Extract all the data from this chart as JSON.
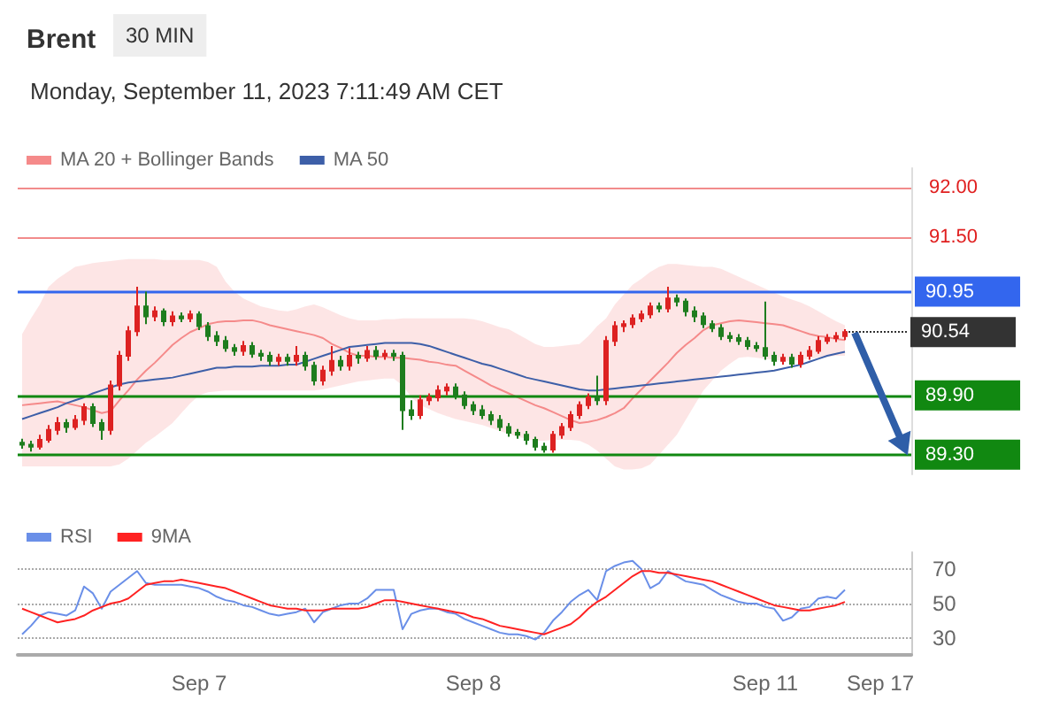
{
  "chart_data": [
    {
      "type": "candlestick",
      "title": "Brent",
      "subtitle": "Monday, September 11, 2023 7:11:49 AM CET",
      "annotations": [
        "30 MIN"
      ],
      "categories": [
        null,
        null,
        null,
        null,
        null,
        null,
        null,
        null,
        null,
        null,
        null,
        null,
        null,
        null,
        null,
        null,
        null,
        null,
        null,
        null,
        null,
        null,
        null,
        null,
        null,
        null,
        null,
        null,
        null,
        null,
        null,
        null,
        null,
        null,
        null,
        null,
        null,
        null,
        null,
        null,
        null,
        null,
        null,
        null,
        null,
        null,
        null,
        null,
        null,
        null,
        null,
        null,
        null,
        null,
        null,
        null,
        null,
        null,
        null,
        null,
        null,
        null,
        null,
        null,
        null,
        null,
        null,
        null,
        null,
        null,
        null,
        null,
        null,
        null,
        null,
        null,
        null,
        null,
        null,
        null,
        null,
        null,
        null,
        null,
        null,
        null,
        null,
        null,
        null,
        null,
        null,
        null,
        null,
        null,
        null,
        null,
        null,
        null,
        null,
        null,
        null
      ],
      "colors": [
        "#1e7d1e",
        "#1e7d1e",
        "#dd2222",
        "#dd2222",
        "#dd2222",
        "#1e7d1e",
        "#dd2222",
        "#dd2222",
        "#1e7d1e",
        "#1e7d1e",
        "#dd2222",
        "#dd2222",
        "#dd2222",
        "#dd2222",
        "#1e7d1e",
        "#dd2222",
        "#1e7d1e",
        "#dd2222",
        "#1e7d1e",
        "#dd2222",
        "#1e7d1e",
        "#1e7d1e",
        "#1e7d1e",
        "#1e7d1e",
        "#1e7d1e",
        "#dd2222",
        "#1e7d1e",
        "#1e7d1e",
        "#1e7d1e",
        "#dd2222",
        "#1e7d1e",
        "#dd2222",
        "#1e7d1e",
        "#1e7d1e",
        "#dd2222",
        "#dd2222",
        "#1e7d1e",
        "#dd2222",
        "#1e7d1e",
        "#dd2222",
        "#1e7d1e",
        "#dd2222",
        "#1e7d1e",
        "#1e7d1e",
        "#1e7d1e",
        "#dd2222",
        "#dd2222",
        "#dd2222",
        "#dd2222",
        "#1e7d1e",
        "#1e7d1e",
        "#1e7d1e",
        "#1e7d1e",
        "#1e7d1e",
        "#1e7d1e",
        "#1e7d1e",
        "#1e7d1e",
        "#1e7d1e",
        "#1e7d1e",
        "#1e7d1e",
        "#dd2222",
        "#dd2222",
        "#dd2222",
        "#dd2222",
        "#dd2222",
        "#1e7d1e",
        "#dd2222",
        "#dd2222",
        "#dd2222",
        "#dd2222",
        "#dd2222",
        "#dd2222",
        "#1e7d1e",
        "#dd2222",
        "#1e7d1e",
        "#1e7d1e",
        "#1e7d1e",
        "#1e7d1e",
        "#1e7d1e",
        "#1e7d1e",
        "#1e7d1e",
        "#1e7d1e",
        "#1e7d1e",
        "#1e7d1e",
        "#1e7d1e",
        "#1e7d1e",
        "#dd2222",
        "#1e7d1e",
        "#dd2222",
        "#dd2222",
        "#dd2222",
        "#dd2222",
        "#dd2222",
        "#dd2222",
        null,
        null,
        null,
        null,
        null,
        null,
        null
      ],
      "ohlc": [
        [
          89.42,
          89.46,
          89.36,
          89.4
        ],
        [
          89.4,
          89.44,
          89.33,
          89.38
        ],
        [
          89.38,
          89.5,
          89.35,
          89.45
        ],
        [
          89.45,
          89.6,
          89.42,
          89.55
        ],
        [
          89.55,
          89.68,
          89.5,
          89.62
        ],
        [
          89.62,
          89.66,
          89.52,
          89.58
        ],
        [
          89.58,
          89.7,
          89.55,
          89.65
        ],
        [
          89.65,
          89.82,
          89.6,
          89.78
        ],
        [
          89.78,
          89.82,
          89.58,
          89.62
        ],
        [
          89.62,
          89.66,
          89.45,
          89.55
        ],
        [
          89.55,
          90.05,
          89.5,
          90.0
        ],
        [
          90.0,
          90.35,
          89.95,
          90.3
        ],
        [
          90.3,
          90.6,
          90.25,
          90.55
        ],
        [
          90.55,
          91.0,
          90.5,
          90.8
        ],
        [
          90.8,
          90.95,
          90.62,
          90.7
        ],
        [
          90.7,
          90.8,
          90.65,
          90.75
        ],
        [
          90.75,
          90.78,
          90.6,
          90.65
        ],
        [
          90.65,
          90.75,
          90.6,
          90.7
        ],
        [
          90.7,
          90.74,
          90.64,
          90.68
        ],
        [
          90.68,
          90.76,
          90.64,
          90.72
        ],
        [
          90.72,
          90.75,
          90.56,
          90.6
        ],
        [
          90.6,
          90.64,
          90.45,
          90.5
        ],
        [
          90.5,
          90.55,
          90.4,
          90.45
        ],
        [
          90.45,
          90.5,
          90.34,
          90.38
        ],
        [
          90.38,
          90.42,
          90.3,
          90.35
        ],
        [
          90.35,
          90.45,
          90.3,
          90.4
        ],
        [
          90.4,
          90.44,
          90.28,
          90.32
        ],
        [
          90.32,
          90.36,
          90.25,
          90.3
        ],
        [
          90.3,
          90.34,
          90.2,
          90.25
        ],
        [
          90.25,
          90.32,
          90.2,
          90.28
        ],
        [
          90.28,
          90.32,
          90.2,
          90.25
        ],
        [
          90.25,
          90.4,
          90.2,
          90.3
        ],
        [
          90.3,
          90.34,
          90.15,
          90.2
        ],
        [
          90.2,
          90.24,
          90.0,
          90.05
        ],
        [
          90.05,
          90.2,
          90.0,
          90.15
        ],
        [
          90.15,
          90.4,
          90.1,
          90.25
        ],
        [
          90.25,
          90.3,
          90.15,
          90.2
        ],
        [
          90.2,
          90.38,
          90.15,
          90.3
        ],
        [
          90.3,
          90.34,
          90.22,
          90.28
        ],
        [
          90.28,
          90.4,
          90.24,
          90.35
        ],
        [
          90.35,
          90.4,
          90.26,
          90.3
        ],
        [
          90.3,
          90.36,
          90.26,
          90.32
        ],
        [
          90.32,
          90.36,
          90.25,
          90.3
        ],
        [
          90.3,
          90.34,
          89.55,
          89.75
        ],
        [
          89.75,
          89.85,
          89.65,
          89.7
        ],
        [
          89.7,
          89.9,
          89.66,
          89.85
        ],
        [
          89.85,
          89.92,
          89.8,
          89.88
        ],
        [
          89.88,
          90.0,
          89.84,
          89.95
        ],
        [
          89.95,
          90.02,
          89.9,
          89.98
        ],
        [
          89.98,
          90.02,
          89.86,
          89.9
        ],
        [
          89.9,
          89.94,
          89.76,
          89.8
        ],
        [
          89.8,
          89.84,
          89.7,
          89.75
        ],
        [
          89.75,
          89.8,
          89.66,
          89.7
        ],
        [
          89.7,
          89.74,
          89.6,
          89.65
        ],
        [
          89.65,
          89.7,
          89.54,
          89.58
        ],
        [
          89.58,
          89.62,
          89.48,
          89.52
        ],
        [
          89.52,
          89.56,
          89.46,
          89.5
        ],
        [
          89.5,
          89.54,
          89.4,
          89.45
        ],
        [
          89.45,
          89.48,
          89.34,
          89.38
        ],
        [
          89.38,
          89.42,
          89.32,
          89.35
        ],
        [
          89.35,
          89.54,
          89.32,
          89.5
        ],
        [
          89.5,
          89.62,
          89.46,
          89.58
        ],
        [
          89.58,
          89.74,
          89.54,
          89.7
        ],
        [
          89.7,
          89.84,
          89.66,
          89.8
        ],
        [
          89.8,
          89.92,
          89.76,
          89.88
        ],
        [
          89.88,
          90.1,
          89.8,
          89.85
        ],
        [
          89.85,
          90.5,
          89.8,
          90.45
        ],
        [
          90.45,
          90.65,
          90.4,
          90.6
        ],
        [
          90.6,
          90.66,
          90.54,
          90.62
        ],
        [
          90.62,
          90.72,
          90.58,
          90.68
        ],
        [
          90.68,
          90.76,
          90.64,
          90.72
        ],
        [
          90.72,
          90.84,
          90.68,
          90.8
        ],
        [
          90.8,
          90.84,
          90.74,
          90.78
        ],
        [
          90.78,
          91.0,
          90.74,
          90.88
        ],
        [
          90.88,
          90.92,
          90.8,
          90.85
        ],
        [
          90.85,
          90.88,
          90.7,
          90.75
        ],
        [
          90.75,
          90.8,
          90.64,
          90.7
        ],
        [
          90.7,
          90.74,
          90.58,
          90.62
        ],
        [
          90.62,
          90.66,
          90.54,
          90.58
        ],
        [
          90.58,
          90.62,
          90.46,
          90.5
        ],
        [
          90.5,
          90.54,
          90.44,
          90.48
        ],
        [
          90.48,
          90.52,
          90.41,
          90.45
        ],
        [
          90.45,
          90.49,
          90.36,
          90.4
        ],
        [
          90.4,
          90.44,
          90.34,
          90.38
        ],
        [
          90.38,
          90.85,
          90.26,
          90.3
        ],
        [
          90.3,
          90.34,
          90.2,
          90.25
        ],
        [
          90.25,
          90.32,
          90.21,
          90.28
        ],
        [
          90.28,
          90.32,
          90.18,
          90.22
        ],
        [
          90.22,
          90.34,
          90.18,
          90.3
        ],
        [
          90.3,
          90.4,
          90.26,
          90.35
        ],
        [
          90.35,
          90.5,
          90.32,
          90.45
        ],
        [
          90.45,
          90.52,
          90.42,
          90.48
        ],
        [
          90.48,
          90.54,
          90.44,
          90.5
        ],
        [
          90.5,
          90.57,
          90.46,
          90.54
        ],
        null,
        null,
        null,
        null,
        null,
        null,
        null
      ],
      "series": [
        {
          "name": "MA 20 + Bollinger Bands",
          "type": "line",
          "color": "#f58a8a",
          "values": [
            89.8,
            89.81,
            89.82,
            89.83,
            89.84,
            89.82,
            89.8,
            89.78,
            89.75,
            89.72,
            89.74,
            89.85,
            89.95,
            90.06,
            90.15,
            90.23,
            90.32,
            90.41,
            90.48,
            90.54,
            90.58,
            90.62,
            90.64,
            90.65,
            90.65,
            90.66,
            90.66,
            90.64,
            90.61,
            90.59,
            90.57,
            90.55,
            90.53,
            90.51,
            90.48,
            90.42,
            90.38,
            90.33,
            90.3,
            90.3,
            90.29,
            90.29,
            90.28,
            90.28,
            90.27,
            90.26,
            90.24,
            90.23,
            90.21,
            90.2,
            90.15,
            90.1,
            90.05,
            90.0,
            89.96,
            89.92,
            89.88,
            89.84,
            89.8,
            89.77,
            89.73,
            89.69,
            89.65,
            89.62,
            89.63,
            89.65,
            89.68,
            89.72,
            89.77,
            89.87,
            89.96,
            90.05,
            90.14,
            90.23,
            90.33,
            90.41,
            90.48,
            90.56,
            90.61,
            90.63,
            90.65,
            90.66,
            90.65,
            90.64,
            90.63,
            90.62,
            90.61,
            90.58,
            90.55,
            90.52,
            90.5,
            90.49,
            90.47,
            90.46,
            null,
            null,
            null,
            null,
            null,
            null,
            null
          ],
          "upper": [
            90.52,
            90.68,
            90.82,
            91.0,
            91.08,
            91.14,
            91.2,
            91.22,
            91.24,
            91.25,
            91.26,
            91.27,
            91.28,
            91.28,
            91.28,
            91.28,
            91.27,
            91.27,
            91.27,
            91.27,
            91.27,
            91.25,
            91.2,
            91.05,
            90.95,
            90.88,
            90.84,
            90.8,
            90.78,
            90.76,
            90.75,
            90.77,
            90.8,
            90.82,
            90.79,
            90.75,
            90.71,
            90.68,
            90.66,
            90.66,
            90.66,
            90.67,
            90.67,
            90.68,
            90.68,
            90.68,
            90.68,
            90.68,
            90.68,
            90.68,
            90.68,
            90.67,
            90.65,
            90.62,
            90.59,
            90.57,
            90.52,
            90.47,
            90.42,
            90.39,
            90.39,
            90.4,
            90.41,
            90.42,
            90.5,
            90.6,
            90.68,
            90.82,
            90.92,
            91.02,
            91.08,
            91.15,
            91.2,
            91.23,
            91.23,
            91.22,
            91.21,
            91.2,
            91.2,
            91.18,
            91.14,
            91.1,
            91.06,
            91.02,
            90.98,
            90.94,
            90.9,
            90.87,
            90.84,
            90.8,
            90.75,
            90.7,
            90.65,
            90.61,
            null,
            null,
            null,
            null,
            null,
            null,
            null
          ],
          "lower": [
            89.18,
            89.18,
            89.18,
            89.18,
            89.18,
            89.18,
            89.18,
            89.18,
            89.18,
            89.18,
            89.18,
            89.2,
            89.26,
            89.34,
            89.42,
            89.48,
            89.55,
            89.62,
            89.72,
            89.82,
            89.9,
            89.93,
            89.94,
            89.95,
            89.95,
            89.95,
            89.95,
            89.95,
            89.95,
            89.95,
            89.95,
            89.95,
            89.95,
            89.95,
            89.96,
            89.98,
            90.0,
            90.02,
            90.04,
            90.05,
            90.06,
            90.07,
            90.07,
            90.0,
            89.88,
            89.8,
            89.76,
            89.72,
            89.69,
            89.66,
            89.64,
            89.62,
            89.6,
            89.57,
            89.54,
            89.51,
            89.48,
            89.46,
            89.44,
            89.44,
            89.45,
            89.45,
            89.45,
            89.44,
            89.4,
            89.34,
            89.26,
            89.18,
            89.15,
            89.15,
            89.16,
            89.2,
            89.3,
            89.4,
            89.5,
            89.65,
            89.8,
            89.95,
            90.05,
            90.15,
            90.22,
            90.28,
            90.29,
            90.28,
            90.27,
            90.26,
            90.25,
            90.25,
            90.26,
            90.27,
            90.28,
            90.29,
            90.3,
            90.3,
            null,
            null,
            null,
            null,
            null,
            null,
            null
          ]
        },
        {
          "name": "MA 50",
          "type": "line",
          "color": "#3d5fa8",
          "values": [
            89.66,
            89.69,
            89.72,
            89.75,
            89.78,
            89.82,
            89.85,
            89.88,
            89.92,
            89.95,
            89.98,
            90.01,
            90.03,
            90.04,
            90.05,
            90.06,
            90.07,
            90.08,
            90.1,
            90.12,
            90.14,
            90.16,
            90.18,
            90.18,
            90.19,
            90.19,
            90.19,
            90.2,
            90.2,
            90.2,
            90.21,
            90.21,
            90.24,
            90.27,
            90.3,
            90.33,
            90.36,
            90.39,
            90.4,
            90.41,
            90.42,
            90.43,
            90.43,
            90.43,
            90.43,
            90.42,
            90.4,
            90.37,
            90.34,
            90.31,
            90.28,
            90.25,
            90.22,
            90.2,
            90.17,
            90.14,
            90.11,
            90.08,
            90.06,
            90.04,
            90.02,
            90.0,
            89.98,
            89.96,
            89.95,
            89.95,
            89.96,
            89.97,
            89.98,
            89.99,
            90.0,
            90.01,
            90.02,
            90.03,
            90.04,
            90.05,
            90.06,
            90.07,
            90.08,
            90.09,
            90.1,
            90.11,
            90.12,
            90.13,
            90.14,
            90.15,
            90.17,
            90.19,
            90.21,
            90.24,
            90.27,
            90.3,
            90.32,
            90.34,
            null,
            null,
            null,
            null,
            null,
            null,
            null
          ]
        }
      ],
      "ref_lines": [
        {
          "axis": "y",
          "value": 90.95,
          "label": "90.95",
          "color": "#3366ee",
          "line_style": "solid"
        },
        {
          "axis": "y",
          "value": 90.54,
          "label": "90.54",
          "color": "#333333",
          "line_style": "dotted"
        },
        {
          "axis": "y",
          "value": 89.9,
          "label": "89.90",
          "color": "#118811",
          "line_style": "solid"
        },
        {
          "axis": "y",
          "value": 89.3,
          "label": "89.30",
          "color": "#118811",
          "line_style": "solid"
        }
      ],
      "ylim": [
        89.1,
        92.2
      ],
      "yticks": [
        {
          "value": 92,
          "label": "92.00"
        },
        {
          "value": 91.5,
          "label": "91.50"
        }
      ],
      "grid": "y",
      "tick_labels": "y",
      "legend": "top left",
      "marker": "none"
    },
    {
      "type": "line",
      "categories": [
        null,
        null,
        null,
        null,
        null,
        null,
        null,
        null,
        null,
        null,
        null,
        null,
        null,
        null,
        null,
        null,
        null,
        null,
        null,
        null,
        "Sep 7",
        null,
        null,
        null,
        null,
        null,
        null,
        null,
        null,
        null,
        null,
        null,
        null,
        null,
        null,
        null,
        null,
        null,
        null,
        null,
        null,
        null,
        null,
        null,
        null,
        null,
        null,
        null,
        null,
        null,
        null,
        "Sep 8",
        null,
        null,
        null,
        null,
        null,
        null,
        null,
        null,
        null,
        null,
        null,
        null,
        null,
        null,
        null,
        null,
        null,
        null,
        null,
        null,
        null,
        null,
        null,
        null,
        null,
        null,
        null,
        null,
        null,
        null,
        null,
        null,
        "Sep 11",
        null,
        null,
        null,
        null,
        null,
        null,
        null,
        null,
        null,
        null,
        null,
        null,
        "Sep 17",
        null,
        null,
        null
      ],
      "series": [
        {
          "name": "RSI",
          "color": "#6a8fe8",
          "values": [
            32,
            37,
            43,
            45,
            44,
            43,
            46,
            60,
            56,
            47,
            57,
            61,
            65,
            69,
            62,
            61,
            61,
            61,
            61,
            60,
            59,
            57,
            54,
            52,
            51,
            49,
            48,
            46,
            44,
            43,
            44,
            45,
            47,
            39,
            45,
            47,
            49,
            50,
            50,
            53,
            58,
            58,
            58,
            35,
            44,
            46,
            47,
            47,
            45,
            44,
            41,
            39,
            37,
            35,
            33,
            32,
            32,
            31,
            29,
            33,
            40,
            45,
            51,
            55,
            58,
            52,
            69,
            72,
            74,
            75,
            70,
            59,
            62,
            69,
            66,
            63,
            62,
            61,
            58,
            55,
            53,
            51,
            50,
            50,
            48,
            47,
            40,
            42,
            47,
            48,
            53,
            54,
            53,
            58,
            null,
            null,
            null,
            null,
            null,
            null,
            null
          ]
        },
        {
          "name": "9MA",
          "color": "#ff2222",
          "values": [
            47,
            45,
            43,
            41,
            39,
            40,
            41,
            43,
            46,
            48,
            50,
            51,
            53,
            57,
            61,
            62,
            63,
            63,
            64,
            63,
            62,
            61,
            60,
            59,
            57,
            55,
            53,
            51,
            49,
            48,
            47,
            47,
            46,
            46,
            46,
            47,
            47,
            47,
            47,
            48,
            50,
            52,
            52,
            51,
            50,
            49,
            48,
            47,
            46,
            45,
            44,
            42,
            41,
            39,
            37,
            36,
            35,
            34,
            33,
            32,
            34,
            36,
            38,
            42,
            47,
            51,
            54,
            58,
            62,
            66,
            69,
            69,
            68,
            68,
            67,
            66,
            65,
            64,
            63,
            61,
            59,
            57,
            55,
            53,
            51,
            49,
            48,
            47,
            46,
            46,
            47,
            48,
            49,
            51,
            null,
            null,
            null,
            null,
            null,
            null,
            null
          ]
        }
      ],
      "ylim": [
        20,
        80
      ],
      "yticks": [
        30,
        50,
        70
      ],
      "grid": "y",
      "legend": "top left",
      "marker": "none"
    }
  ]
}
